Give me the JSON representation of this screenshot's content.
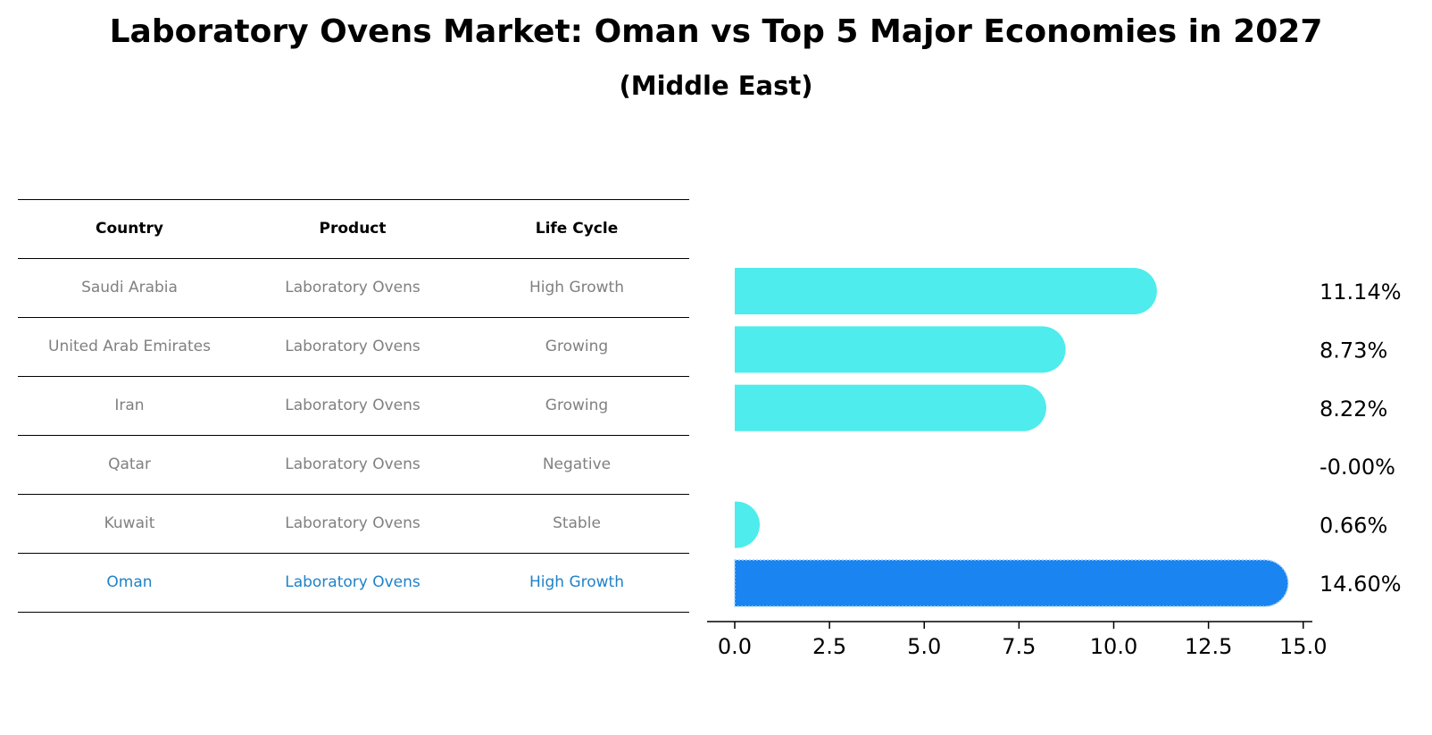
{
  "title": "Laboratory Ovens Market: Oman vs Top 5 Major Economies in 2027",
  "subtitle": "(Middle East)",
  "table": {
    "headers": [
      "Country",
      "Product",
      "Life Cycle"
    ],
    "rows": [
      [
        "Saudi Arabia",
        "Laboratory Ovens",
        "High Growth"
      ],
      [
        "United Arab Emirates",
        "Laboratory Ovens",
        "Growing"
      ],
      [
        "Iran",
        "Laboratory Ovens",
        "Growing"
      ],
      [
        "Qatar",
        "Laboratory Ovens",
        "Negative"
      ],
      [
        "Kuwait",
        "Laboratory Ovens",
        "Stable"
      ],
      [
        "Oman",
        "Laboratory Ovens",
        "High Growth"
      ]
    ],
    "highlight_row": 5,
    "highlight_color": "#1f82c9",
    "text_color": "#808080"
  },
  "chart_data": {
    "type": "bar",
    "orientation": "horizontal",
    "categories": [
      "Saudi Arabia",
      "United Arab Emirates",
      "Iran",
      "Qatar",
      "Kuwait",
      "Oman"
    ],
    "values": [
      11.14,
      8.73,
      8.22,
      0.0,
      0.66,
      14.6
    ],
    "value_labels": [
      "11.14%",
      "8.73%",
      "8.22%",
      "-0.00%",
      "0.66%",
      "14.60%"
    ],
    "xlim": [
      -0.75,
      15.3
    ],
    "xticks": [
      0.0,
      2.5,
      5.0,
      7.5,
      10.0,
      12.5,
      15.0
    ],
    "xtick_labels": [
      "0.0",
      "2.5",
      "5.0",
      "7.5",
      "10.0",
      "12.5",
      "15.0"
    ],
    "grid": false,
    "colors": {
      "default": "#4eecec",
      "highlight": "#1a85f0"
    },
    "highlight_index": 5
  }
}
